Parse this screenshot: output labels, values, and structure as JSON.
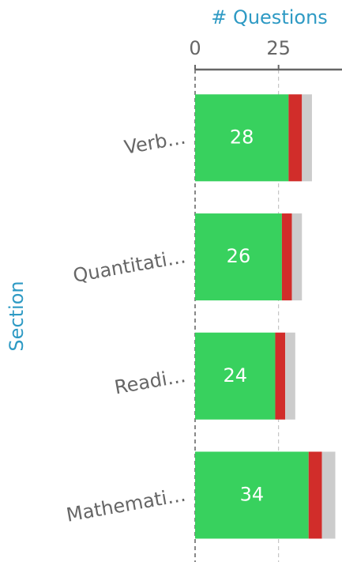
{
  "chart_data": {
    "type": "stacked_barh",
    "x_label": "# Questions",
    "y_label": "Section",
    "categories": [
      "Verb…",
      "Quantitati…",
      "Readi…",
      "Mathemati…"
    ],
    "series": [
      {
        "color": "#38d15e",
        "values": [
          28,
          26,
          24,
          34
        ],
        "labels": true
      },
      {
        "color": "#d12d2a",
        "values": [
          4,
          3,
          3,
          4
        ]
      },
      {
        "color": "#cccccc",
        "values": [
          3,
          3,
          3,
          4
        ]
      }
    ],
    "xlim": [
      0,
      44
    ],
    "xticks": [
      0,
      25
    ],
    "grid": true
  }
}
